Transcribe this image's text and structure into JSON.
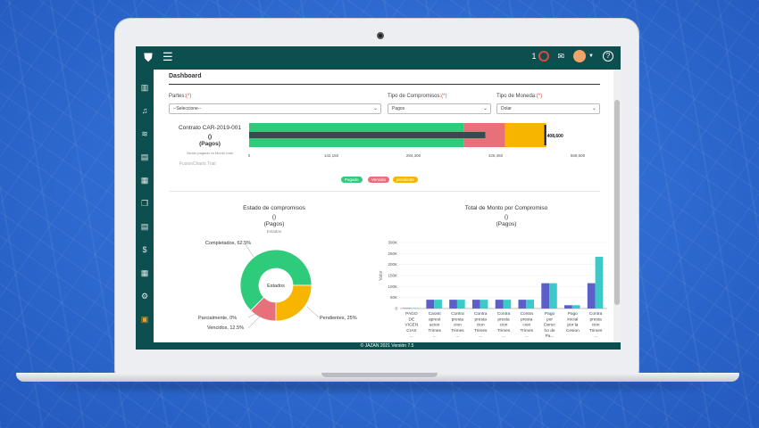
{
  "app": {
    "notification_count": "1",
    "footer": "©  JAZAN  2021  Versión 7.5"
  },
  "page": {
    "title": "Dashboard"
  },
  "filters": {
    "partes_label": "Partes:",
    "partes_value": "--Seleccione--",
    "tipo_compromisos_label": "Tipo de Compromisos:",
    "tipo_compromisos_value": "Pagos",
    "tipo_moneda_label": "Tipo de Moneda:",
    "tipo_moneda_value": "Dolar",
    "required_mark": "(*)"
  },
  "contract_chart": {
    "title": "Contrato CAR-2019-001",
    "subtitle": "()",
    "subtitle2": "(Pagos)",
    "caption": "Monto pagado vs Monto total",
    "target_label": "408,600",
    "credit": "FusionCharts Trial",
    "legend": [
      "Pagado",
      "Vencido",
      "pendiente"
    ],
    "ticks": [
      "0",
      "142,150",
      "284,300",
      "426,450",
      "568,600"
    ]
  },
  "donut_chart": {
    "title": "Estado de compromisos",
    "subtitle": "()",
    "subtitle2": "(Pagos)",
    "caption": "Estados",
    "center_label": "Estados",
    "labels": [
      "Completados, 62.5%",
      "Parcialmente, 0%",
      "Vencidos, 12.5%",
      "Pendientes, 25%"
    ]
  },
  "bar_chart": {
    "title": "Total de Monto por Compromiso",
    "subtitle": "()",
    "subtitle2": "(Pagos)",
    "ylabel": "Valor",
    "yticks": [
      "0",
      "50K",
      "100K",
      "150K",
      "200K",
      "250K",
      "300K"
    ],
    "categories": [
      [
        "PAGO",
        "DE",
        "VIGEN",
        "CIAS",
        "..."
      ],
      [
        "Caonti",
        "aprest",
        "acion",
        "Trimes",
        "..."
      ],
      [
        "Contra",
        "presta",
        "cion",
        "Trimes",
        "..."
      ],
      [
        "Contra",
        "presta",
        "cion",
        "Trimes",
        "..."
      ],
      [
        "Contra",
        "presta",
        "cion",
        "Trimes",
        "..."
      ],
      [
        "Contra",
        "presta",
        "cion",
        "Trimes",
        "..."
      ],
      [
        "Pago",
        "por",
        "Derec",
        "ho de",
        "Pa..."
      ],
      [
        "Pago",
        "inicial",
        "por la",
        "Cesion",
        ""
      ],
      [
        "Contra",
        "presta",
        "cion",
        "Trimes",
        "..."
      ]
    ]
  },
  "chart_data": [
    {
      "type": "bar",
      "title": "Contrato CAR-2019-001",
      "orientation": "horizontal-stacked",
      "xlim": [
        0,
        568600
      ],
      "segments": [
        {
          "name": "Pagado",
          "value": 372000,
          "color": "#2ecc7a"
        },
        {
          "name": "Vencido",
          "value": 71000,
          "color": "#e8707a"
        },
        {
          "name": "pendiente",
          "value": 71000,
          "color": "#f7b500"
        }
      ],
      "target": 408600
    },
    {
      "type": "pie",
      "title": "Estado de compromisos",
      "slices": [
        {
          "name": "Completados",
          "value": 62.5,
          "color": "#2ecc7a"
        },
        {
          "name": "Parcialmente",
          "value": 0,
          "color": "#8e44ad"
        },
        {
          "name": "Vencidos",
          "value": 12.5,
          "color": "#e8707a"
        },
        {
          "name": "Pendientes",
          "value": 25,
          "color": "#f7b500"
        }
      ]
    },
    {
      "type": "bar",
      "title": "Total de Monto por Compromiso",
      "ylabel": "Valor",
      "ylim": [
        0,
        300000
      ],
      "series": [
        {
          "values": [
            2000,
            40000,
            40000,
            40000,
            40000,
            40000,
            115000,
            15000,
            115000
          ],
          "color": "#5b5fc7"
        },
        {
          "values": [
            2000,
            40000,
            40000,
            40000,
            40000,
            40000,
            115000,
            15000,
            235000
          ],
          "color": "#3ec9c9"
        }
      ]
    }
  ]
}
